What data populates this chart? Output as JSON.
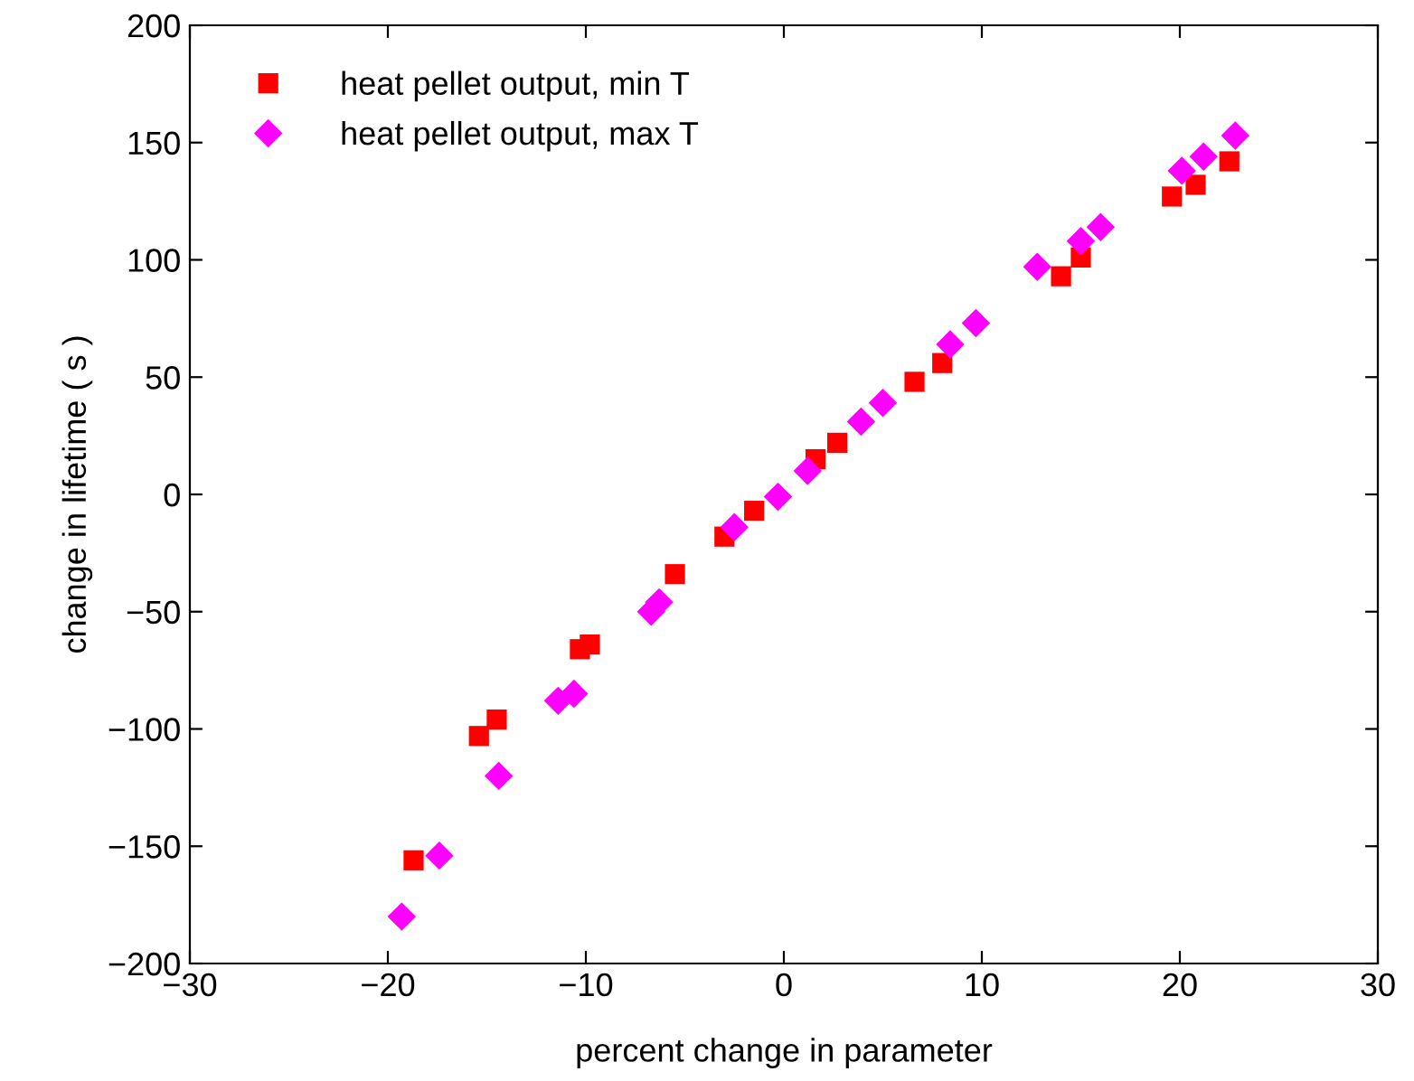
{
  "chart_data": {
    "type": "scatter",
    "xlabel": "percent change in parameter",
    "ylabel": "change in lifetime ( s )",
    "xlim": [
      -30,
      30
    ],
    "xticks": [
      -30,
      -20,
      -10,
      0,
      10,
      20,
      30
    ],
    "ylim": [
      -200,
      200
    ],
    "yticks": [
      -200,
      -150,
      -100,
      -50,
      0,
      50,
      100,
      150,
      200
    ],
    "grid": false,
    "legend": "top left",
    "series": [
      {
        "name": "heat pellet output, min T",
        "color": "#ff0000",
        "marker": "square",
        "x": [
          -18.7,
          -15.4,
          -14.5,
          -10.3,
          -9.8,
          -5.5,
          -3.0,
          -1.5,
          1.6,
          2.7,
          6.6,
          8.0,
          14.0,
          15.0,
          19.6,
          20.8,
          22.5
        ],
        "values": [
          -156,
          -103,
          -96,
          -66,
          -64,
          -34,
          -18,
          -7,
          15,
          22,
          48,
          56,
          93,
          101,
          127,
          132,
          142
        ]
      },
      {
        "name": "heat pellet output, max T",
        "color": "#ff00ff",
        "marker": "diamond",
        "x": [
          -19.3,
          -17.4,
          -14.4,
          -11.4,
          -10.6,
          -6.7,
          -6.3,
          -2.5,
          -0.3,
          1.2,
          3.9,
          5.0,
          8.4,
          9.7,
          12.8,
          15.0,
          16.0,
          20.1,
          21.2,
          22.8
        ],
        "values": [
          -180,
          -154,
          -120,
          -88,
          -85,
          -50,
          -46,
          -14,
          -1,
          10,
          31,
          39,
          64,
          73,
          97,
          108,
          114,
          138,
          144,
          153
        ]
      }
    ]
  }
}
